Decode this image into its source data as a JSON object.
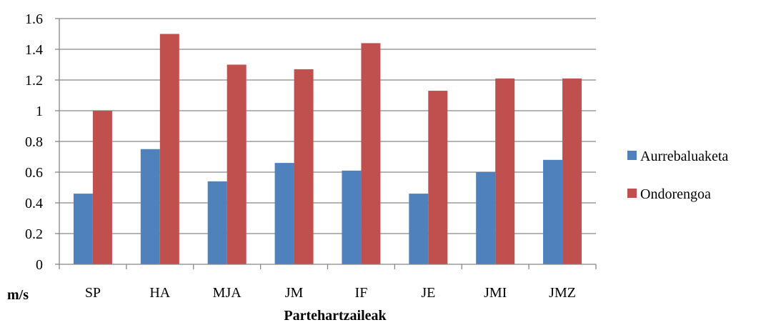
{
  "chart_data": {
    "type": "bar",
    "categories": [
      "SP",
      "HA",
      "MJA",
      "JM",
      "IF",
      "JE",
      "JMI",
      "JMZ"
    ],
    "series": [
      {
        "name": "Aurrebaluaketa",
        "color": "#4F81BD",
        "values": [
          0.46,
          0.75,
          0.54,
          0.66,
          0.61,
          0.46,
          0.6,
          0.68
        ]
      },
      {
        "name": "Ondorengoa",
        "color": "#C0504D",
        "values": [
          1.0,
          1.5,
          1.3,
          1.27,
          1.44,
          1.13,
          1.21,
          1.21
        ]
      }
    ],
    "title": "",
    "xlabel": "Partehartzaileak",
    "ylabel": "m/s",
    "ylim": [
      0,
      1.6
    ],
    "yticks": [
      "0",
      "0.2",
      "0.4",
      "0.6",
      "0.8",
      "1",
      "1.2",
      "1.4",
      "1.6"
    ],
    "grid": true,
    "legend_position": "right"
  }
}
